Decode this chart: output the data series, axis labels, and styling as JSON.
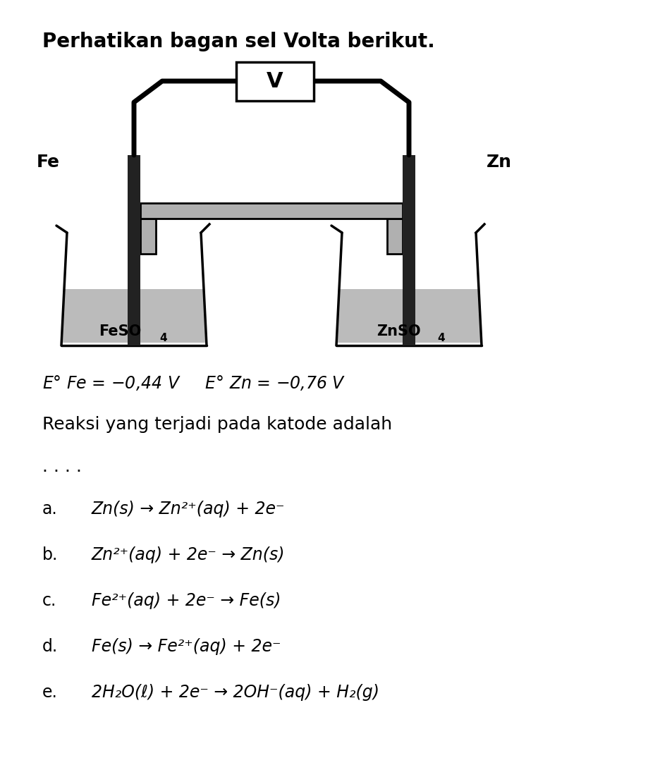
{
  "title": "Perhatikan bagan sel Volta berikut.",
  "title_fontsize": 20,
  "background_color": "#ffffff",
  "text_color": "#000000",
  "diagram": {
    "voltmeter_label": "V",
    "left_electrode_label": "Fe",
    "right_electrode_label": "Zn",
    "left_solution_label": "FeSO",
    "left_solution_subscript": "4",
    "right_solution_label": "ZnSO",
    "right_solution_subscript": "4",
    "solution_color": "#b0b0b0",
    "beaker_color": "#000000",
    "wire_color": "#000000",
    "electrode_color": "#222222",
    "salt_bridge_color": "#888888"
  },
  "eo_line": "E° Fe = −0,44 V     E° Zn = −0,76 V",
  "question_line1": "Reaksi yang terjadi pada katode adalah",
  "question_line2": ". . . .",
  "options": [
    {
      "label": "a.",
      "text": "Zn(s) → Zn²⁺(aq) + 2e⁻"
    },
    {
      "label": "b.",
      "text": "Zn²⁺(aq) + 2e⁻ → Zn(s)"
    },
    {
      "label": "c.",
      "text": "Fe²⁺(aq) + 2e⁻ → Fe(s)"
    },
    {
      "label": "d.",
      "text": "Fe(s) → Fe²⁺(aq) + 2e⁻"
    },
    {
      "label": "e.",
      "text": "2H₂O(ℓ) + 2e⁻ → 2OH⁻(aq) + H₂(g)"
    }
  ]
}
